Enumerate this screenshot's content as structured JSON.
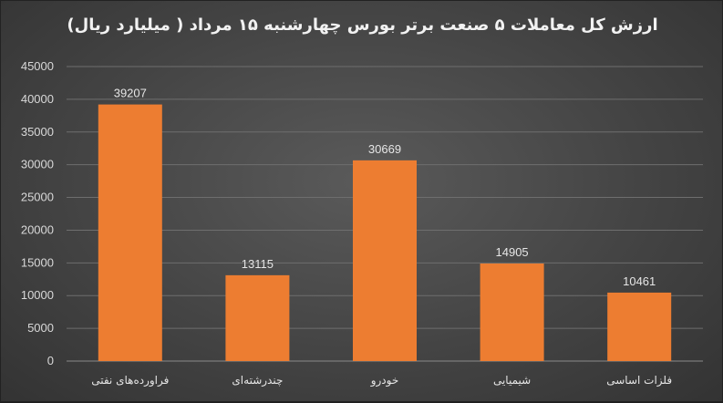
{
  "chart_data": {
    "type": "bar",
    "title": "ارزش کل معاملات ۵ صنعت برتر بورس چهارشنبه ۱۵ مرداد ( میلیارد ریال)",
    "categories": [
      "فراورده‌های نفتی",
      "چندرشته‌ای",
      "خودرو",
      "شیمیایی",
      "فلزات اساسی"
    ],
    "values": [
      39207,
      13115,
      30669,
      14905,
      10461
    ],
    "ylim": [
      0,
      45000
    ],
    "yticks": [
      "0",
      "5000",
      "10000",
      "15000",
      "20000",
      "25000",
      "30000",
      "35000",
      "40000",
      "45000"
    ],
    "grid": true,
    "legend": "none",
    "bar_color": "#ed7d31"
  }
}
